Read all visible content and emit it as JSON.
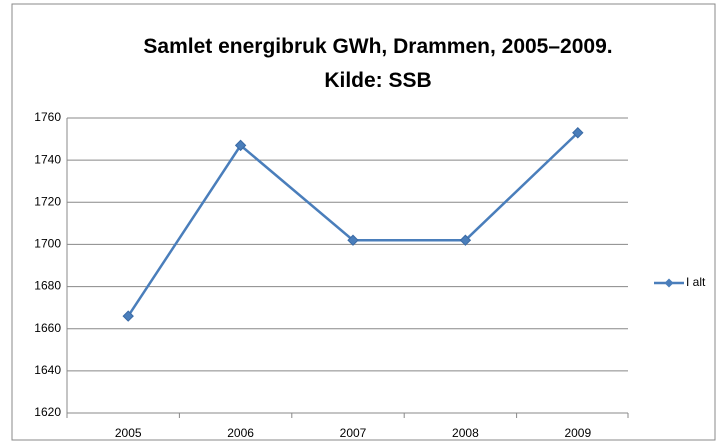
{
  "chart_data": {
    "type": "line",
    "title": "Samlet energibruk GWh, Drammen, 2005–2009. Kilde: SSB",
    "categories": [
      "2005",
      "2006",
      "2007",
      "2008",
      "2009"
    ],
    "series": [
      {
        "name": "I alt",
        "color": "#4a7ebb",
        "values": [
          1666,
          1747,
          1702,
          1702,
          1753
        ]
      }
    ],
    "ylim": [
      1620,
      1760
    ],
    "yticks": [
      1620,
      1640,
      1660,
      1680,
      1700,
      1720,
      1740,
      1760
    ],
    "grid": true,
    "legend": "right"
  }
}
